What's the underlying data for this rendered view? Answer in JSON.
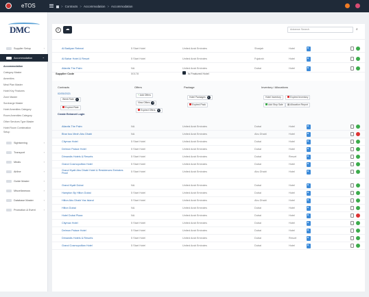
{
  "app": {
    "title": "eTOS"
  },
  "breadcrumb": [
    "Contracts",
    "Accommodation",
    "Accommodation"
  ],
  "logo": {
    "text": "DMC"
  },
  "sidebar": {
    "items": [
      {
        "label": "Supplier Setup",
        "active": false
      },
      {
        "label": "Accommodation",
        "active": true
      }
    ],
    "subitems": [
      "Accommodation",
      "Category Master",
      "Amenities",
      "Meal Plan Master",
      "Hotel Key Features",
      "Zone Master",
      "Surcharge Master",
      "Hotel Amenities Category",
      "Room Amenities Category",
      "Other Services Type Master",
      "Hotel Room Combination",
      "Setup"
    ],
    "modules": [
      "Sightseeing",
      "Transport",
      "Meals",
      "Airline",
      "Guide Master",
      "Miscellaneous",
      "Database Master",
      "Promotion & Event"
    ]
  },
  "toolbar": {
    "search_placeholder": "Advance Search"
  },
  "rows_top": [
    {
      "name": "Al Badiyan Retreat",
      "category": "5 Start Hotel",
      "country": "United Arab Emirates",
      "city": "Sharjah",
      "type": "Hotel",
      "status": "ok"
    },
    {
      "name": "Al Bahar Hotel & Resort",
      "category": "5 Start Hotel",
      "country": "United Arab Emirates",
      "city": "Fujairah",
      "type": "Hotel",
      "status": "ok"
    },
    {
      "name": "Atlantis The Palm",
      "category": "NA",
      "country": "United Arab Emirates",
      "city": "Dubai",
      "type": "Hotel",
      "status": "ok"
    }
  ],
  "detail": {
    "supplier_code_label": "Supplier Code",
    "supplier_code_value": "00178",
    "featured_label": "Is Featured Hotel",
    "contracts_header": "Contracts",
    "contracts_date": "02/05/2021",
    "contracts_rates_label": "Week Rate",
    "contracts_rates_count": "1",
    "contracts_expired_label": "Expired Rate",
    "create_login": "Create Extranet Login",
    "offers_header": "Offers",
    "offers_add": "Add Offers",
    "offers_view": "View Offers",
    "offers_view_count": "3",
    "offers_expired": "Expired Offers",
    "offers_expired_count": "3",
    "package_header": "Package",
    "package_hotel": "Hotel Packages",
    "package_hotel_count": "0",
    "package_expired": "Expired Pack",
    "inventory_header": "Inventory / Allocations",
    "inventory_hotel": "Hotel Inventory",
    "inventory_expired": "Expired Inventory",
    "inventory_add": "Add Stop Sale",
    "inventory_report": "Allocation Report"
  },
  "rows_bottom": [
    {
      "name": "Atlantis The Palm",
      "category": "NA",
      "country": "United Arab Emirates",
      "city": "Dubai",
      "type": "Hotel",
      "status": "ok"
    },
    {
      "name": "Bhar bus Mezh Abu Dhabi",
      "category": "NA",
      "country": "United Arab Emirates",
      "city": "Abu Dhabi",
      "type": "Hotel",
      "status": "no"
    },
    {
      "name": "Citymax Hotel",
      "category": "5 Start Hotel",
      "country": "United Arab Emirates",
      "city": "Dubai",
      "type": "Hotel",
      "status": "ok"
    },
    {
      "name": "Delmon Palace Hotel",
      "category": "5 Start Hotel",
      "country": "United Arab Emirates",
      "city": "Dubai",
      "type": "Hotel",
      "status": "ok"
    },
    {
      "name": "Dimandis Hotels & Resorts",
      "category": "5 Start Hotel",
      "country": "United Arab Emirates",
      "city": "Dubai",
      "type": "Resort",
      "status": "ok"
    },
    {
      "name": "Grand Cosmopolitan Hotel",
      "category": "5 Start Hotel",
      "country": "United Arab Emirates",
      "city": "Dubai",
      "type": "Hotel",
      "status": "ok"
    },
    {
      "name": "Grand Hyatt Abu Dhabi Hotel & Residences Emirates Pearl",
      "category": "5 Start Hotel",
      "country": "United Arab Emirates",
      "city": "Abu Dhabi",
      "type": "Hotel",
      "status": "ok"
    },
    {
      "name": "Grand Hyatt Dubai",
      "category": "NA",
      "country": "United Arab Emirates",
      "city": "Dubai",
      "type": "Hotel",
      "status": "ok"
    },
    {
      "name": "Hampton By Hilton Dubai",
      "category": "5 Start Hotel",
      "country": "United Arab Emirates",
      "city": "Dubai",
      "type": "Hotel",
      "status": "ok"
    },
    {
      "name": "Hilton Abu Dhabi Yas Island",
      "category": "5 Start Hotel",
      "country": "United Arab Emirates",
      "city": "Abu Dhabi",
      "type": "Hotel",
      "status": "ok"
    },
    {
      "name": "Hilton Dubai",
      "category": "NA",
      "country": "United Arab Emirates",
      "city": "Dubai",
      "type": "Hotel",
      "status": "ok"
    },
    {
      "name": "Hotel Dubai Plaza",
      "category": "NA",
      "country": "United Arab Emirates",
      "city": "Dubai",
      "type": "Hotel",
      "status": "no"
    },
    {
      "name": "Citymax Hotel",
      "category": "5 Start Hotel",
      "country": "United Arab Emirates",
      "city": "Dubai",
      "type": "Hotel",
      "status": "ok"
    },
    {
      "name": "Delmon Palace Hotel",
      "category": "5 Start Hotel",
      "country": "United Arab Emirates",
      "city": "Dubai",
      "type": "Hotel",
      "status": "ok"
    },
    {
      "name": "Dimandis Hotels & Resorts",
      "category": "5 Start Hotel",
      "country": "United Arab Emirates",
      "city": "Dubai",
      "type": "Resort",
      "status": "ok"
    },
    {
      "name": "Grand Cosmopolitan Hotel",
      "category": "5 Start Hotel",
      "country": "United Arab Emirates",
      "city": "Dubai",
      "type": "Hotel",
      "status": "ok"
    }
  ]
}
